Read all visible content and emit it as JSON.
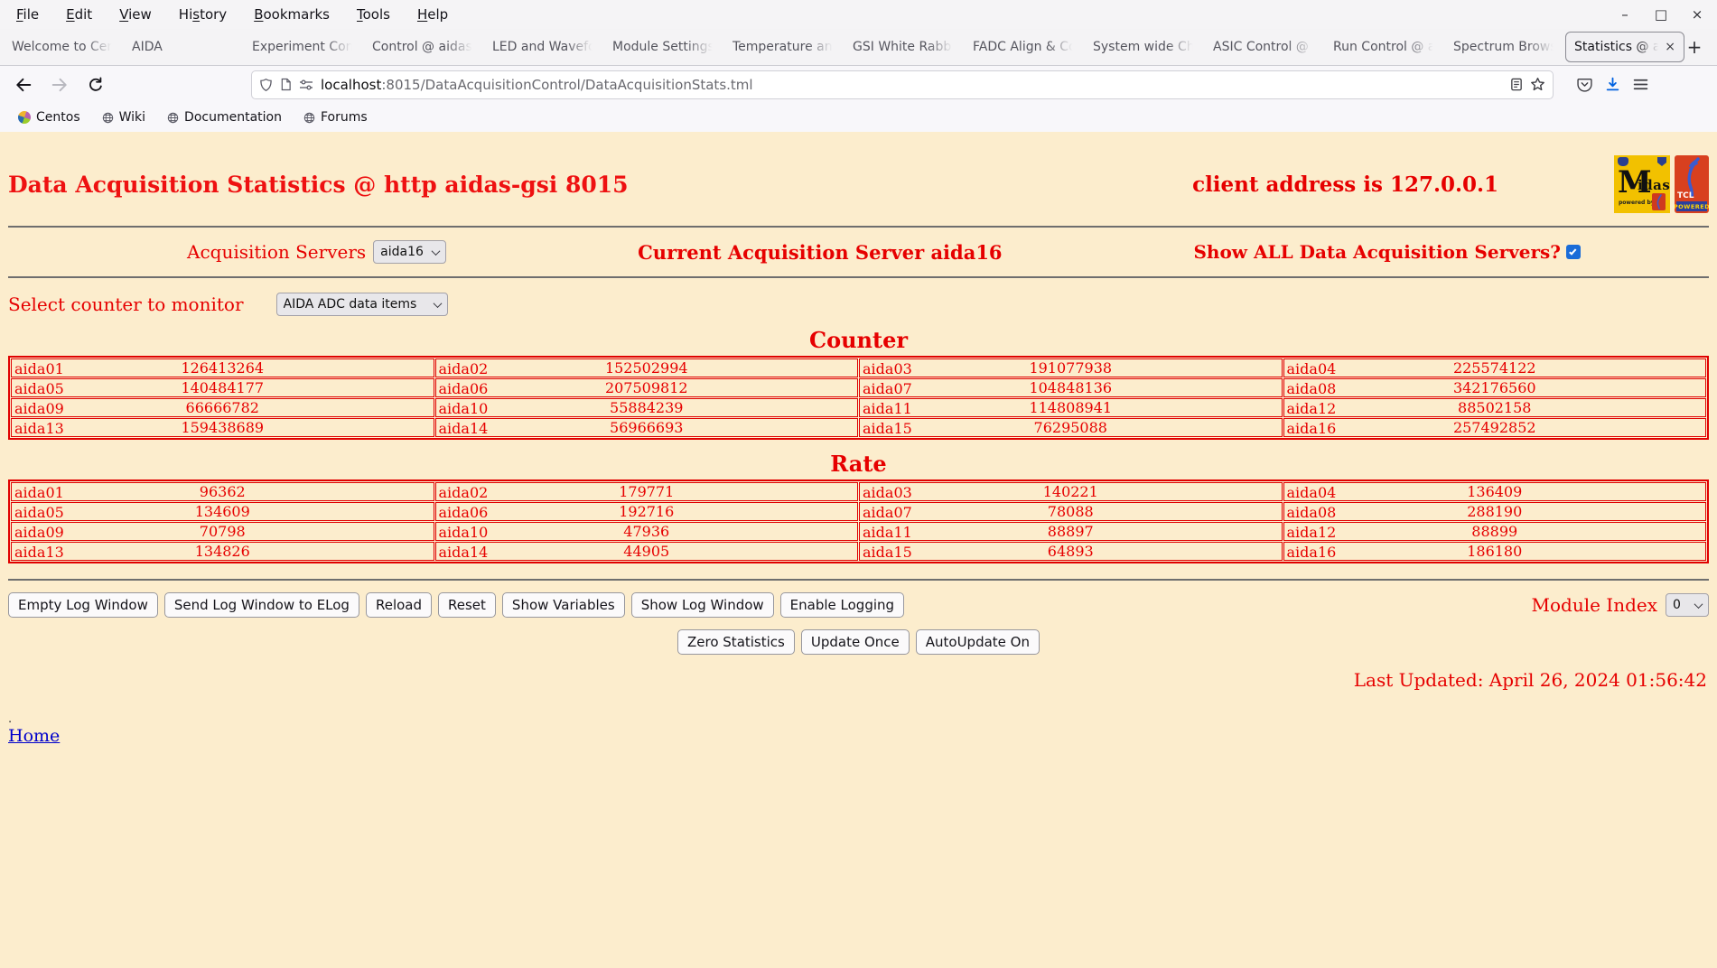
{
  "colors": {
    "page_background": "#fcedcd",
    "accent_red": "#e60000",
    "table_border": "#e00000",
    "link_blue": "#0000cc",
    "download_blue": "#0061e0",
    "checkbox_blue": "#1a6cd8"
  },
  "browser": {
    "menu_items": [
      {
        "label": "File",
        "accel": 0
      },
      {
        "label": "Edit",
        "accel": 0
      },
      {
        "label": "View",
        "accel": 0
      },
      {
        "label": "History",
        "accel": 2
      },
      {
        "label": "Bookmarks",
        "accel": 0
      },
      {
        "label": "Tools",
        "accel": 0
      },
      {
        "label": "Help",
        "accel": 0
      }
    ],
    "window_controls": {
      "minimize": "–",
      "maximize": "□",
      "close": "×"
    },
    "tabs": [
      {
        "label": "Welcome to Cent",
        "active": false
      },
      {
        "label": "AIDA",
        "active": false
      },
      {
        "label": "Experiment Contr",
        "active": false
      },
      {
        "label": "Control @ aidas-",
        "active": false
      },
      {
        "label": "LED and Wavefor",
        "active": false
      },
      {
        "label": "Module Settings S",
        "active": false
      },
      {
        "label": "Temperature and",
        "active": false
      },
      {
        "label": "GSI White Rabbit",
        "active": false
      },
      {
        "label": "FADC Align & Co",
        "active": false
      },
      {
        "label": "System wide Che",
        "active": false
      },
      {
        "label": "ASIC Control @ a",
        "active": false
      },
      {
        "label": "Run Control @ ai",
        "active": false
      },
      {
        "label": "Spectrum Browse",
        "active": false
      },
      {
        "label": "Statistics @ aid",
        "active": true
      }
    ],
    "icons": {
      "close_tab": "×",
      "new_tab": "+"
    },
    "url_bar": {
      "host": "localhost",
      "path": ":8015/DataAcquisitionControl/DataAcquisitionStats.tml"
    },
    "bookmarks": [
      {
        "label": "Centos",
        "icon": "centos-logo"
      },
      {
        "label": "Wiki",
        "icon": "globe"
      },
      {
        "label": "Documentation",
        "icon": "globe"
      },
      {
        "label": "Forums",
        "icon": "globe"
      }
    ]
  },
  "page": {
    "title": "Data Acquisition Statistics @ http aidas-gsi 8015",
    "client_address": "client address is 127.0.0.1",
    "logos": {
      "midas_m": "M",
      "midas_rest": "idas",
      "midas_powered": "powered by",
      "tcl": "TCL",
      "tcl_powered": "POWERED"
    },
    "acquisition_servers_label": "Acquisition Servers",
    "acquisition_server_selected": "aida16",
    "current_server_text": "Current Acquisition Server aida16",
    "show_all_label": "Show ALL Data Acquisition Servers?",
    "show_all_checked": true,
    "counter_select_label": "Select counter to monitor",
    "counter_select_value": "AIDA ADC data items",
    "counter_heading": "Counter",
    "rate_heading": "Rate",
    "counter_table": {
      "rows": [
        [
          {
            "name": "aida01",
            "value": "126413264"
          },
          {
            "name": "aida02",
            "value": "152502994"
          },
          {
            "name": "aida03",
            "value": "191077938"
          },
          {
            "name": "aida04",
            "value": "225574122"
          }
        ],
        [
          {
            "name": "aida05",
            "value": "140484177"
          },
          {
            "name": "aida06",
            "value": "207509812"
          },
          {
            "name": "aida07",
            "value": "104848136"
          },
          {
            "name": "aida08",
            "value": "342176560"
          }
        ],
        [
          {
            "name": "aida09",
            "value": "66666782"
          },
          {
            "name": "aida10",
            "value": "55884239"
          },
          {
            "name": "aida11",
            "value": "114808941"
          },
          {
            "name": "aida12",
            "value": "88502158"
          }
        ],
        [
          {
            "name": "aida13",
            "value": "159438689"
          },
          {
            "name": "aida14",
            "value": "56966693"
          },
          {
            "name": "aida15",
            "value": "76295088"
          },
          {
            "name": "aida16",
            "value": "257492852"
          }
        ]
      ]
    },
    "rate_table": {
      "rows": [
        [
          {
            "name": "aida01",
            "value": "96362"
          },
          {
            "name": "aida02",
            "value": "179771"
          },
          {
            "name": "aida03",
            "value": "140221"
          },
          {
            "name": "aida04",
            "value": "136409"
          }
        ],
        [
          {
            "name": "aida05",
            "value": "134609"
          },
          {
            "name": "aida06",
            "value": "192716"
          },
          {
            "name": "aida07",
            "value": "78088"
          },
          {
            "name": "aida08",
            "value": "288190"
          }
        ],
        [
          {
            "name": "aida09",
            "value": "70798"
          },
          {
            "name": "aida10",
            "value": "47936"
          },
          {
            "name": "aida11",
            "value": "88897"
          },
          {
            "name": "aida12",
            "value": "88899"
          }
        ],
        [
          {
            "name": "aida13",
            "value": "134826"
          },
          {
            "name": "aida14",
            "value": "44905"
          },
          {
            "name": "aida15",
            "value": "64893"
          },
          {
            "name": "aida16",
            "value": "186180"
          }
        ]
      ]
    },
    "toolbar_buttons": [
      "Empty Log Window",
      "Send Log Window to ELog",
      "Reload",
      "Reset",
      "Show Variables",
      "Show Log Window",
      "Enable Logging"
    ],
    "module_index_label": "Module Index",
    "module_index_value": "0",
    "update_buttons": [
      "Zero Statistics",
      "Update Once",
      "AutoUpdate On"
    ],
    "last_updated": "Last Updated: April 26, 2024 01:56:42",
    "dot": ".",
    "home_link": "Home"
  }
}
